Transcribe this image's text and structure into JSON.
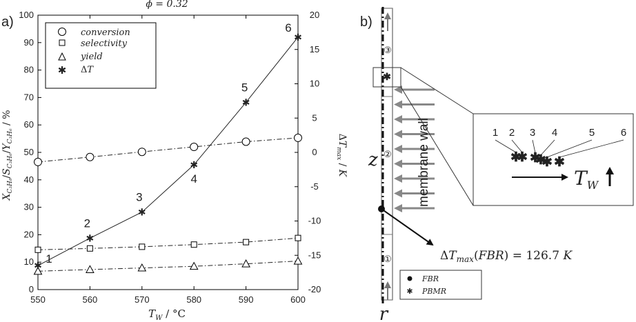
{
  "chart_data": [
    {
      "panel": "a)",
      "type": "line",
      "title": "ϕ = 0.32",
      "xlabel": "T_W / °C",
      "ylabel": "X_C3H8 / S_C3H6 / Y_C3H6 / %",
      "y2label": "ΔT_max / K",
      "xlim": [
        550,
        600
      ],
      "ylim": [
        0,
        100
      ],
      "y2lim": [
        -20,
        20
      ],
      "x_ticks": [
        "550",
        "560",
        "570",
        "580",
        "590",
        "600"
      ],
      "y_ticks": [
        "0",
        "10",
        "20",
        "30",
        "40",
        "50",
        "60",
        "70",
        "80",
        "90",
        "100"
      ],
      "y2_ticks": [
        "-20",
        "-15",
        "-10",
        "-5",
        "0",
        "5",
        "10",
        "15",
        "20"
      ],
      "legend_position": "top-left",
      "x": [
        550,
        560,
        570,
        580,
        590,
        600
      ],
      "series": [
        {
          "name": "conversion",
          "axis": "left",
          "marker": "circle",
          "line": "dash-dot",
          "values": [
            46.5,
            48.3,
            50.2,
            52.0,
            53.9,
            55.3
          ]
        },
        {
          "name": "selectivity",
          "axis": "left",
          "marker": "square",
          "line": "dash-dot",
          "values": [
            14.5,
            15.0,
            15.6,
            16.4,
            17.3,
            18.8
          ]
        },
        {
          "name": "yield",
          "axis": "left",
          "marker": "triangle",
          "line": "dash-dot",
          "values": [
            6.7,
            7.3,
            7.9,
            8.5,
            9.4,
            10.4
          ]
        },
        {
          "name": "ΔT",
          "axis": "right",
          "marker": "asterisk",
          "line": "solid",
          "values": [
            -16.5,
            -12.5,
            -8.7,
            -1.8,
            7.3,
            16.8
          ]
        }
      ],
      "point_labels": [
        "1",
        "2",
        "3",
        "4",
        "5",
        "6"
      ]
    },
    {
      "panel": "b)",
      "type": "diagram",
      "axis_z": "z",
      "axis_r": "r",
      "zones": [
        "③",
        "②",
        "①"
      ],
      "wall_label": "membrane wall",
      "callout": "ΔT_max(FBR) = 126.7 K",
      "inset_labels": [
        "1",
        "2",
        "3",
        "4",
        "5",
        "6"
      ],
      "inset_arrow_label": "T_W",
      "legend": [
        "FBR",
        "PBMR"
      ]
    }
  ]
}
